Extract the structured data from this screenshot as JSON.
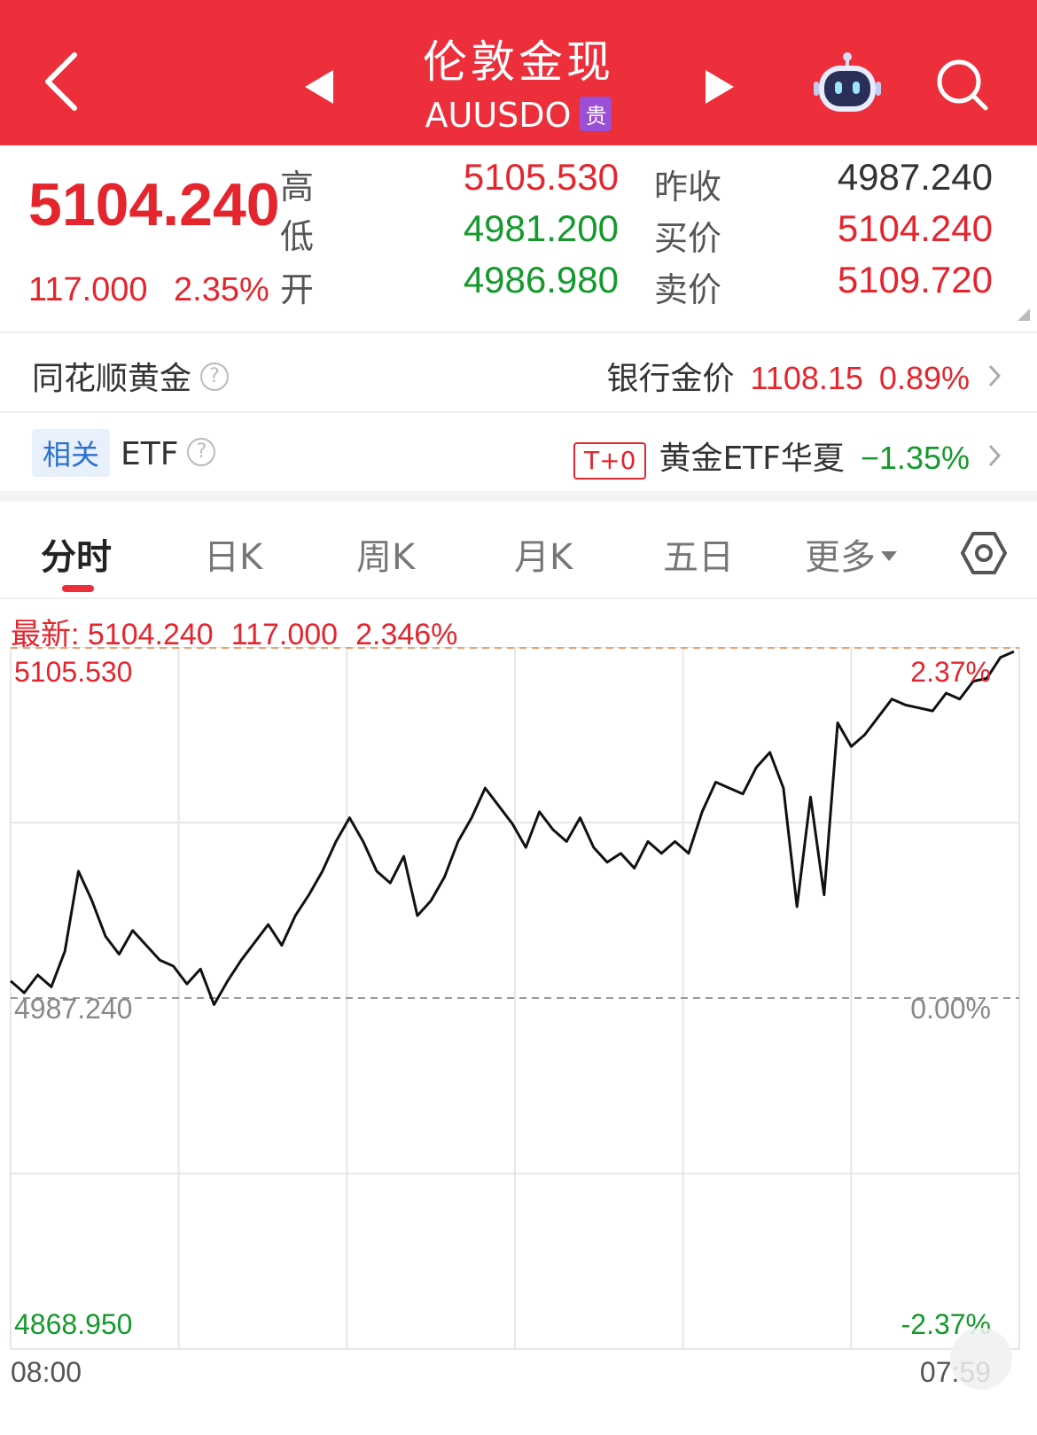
{
  "header": {
    "title": "伦敦金现",
    "code": "AUUSDO",
    "badge": "贵",
    "back_icon": "chevron-left-icon",
    "prev_icon": "triangle-left-icon",
    "next_icon": "triangle-right-icon",
    "assistant_icon": "robot-icon",
    "search_icon": "search-icon"
  },
  "quote": {
    "price": "5104.240",
    "change": "117.000",
    "change_pct": "2.35%",
    "high_label": "高",
    "high": "5105.530",
    "low_label": "低",
    "low": "4981.200",
    "open_label": "开",
    "open": "4986.980",
    "prev_close_label": "昨收",
    "prev_close": "4987.240",
    "bid_label": "买价",
    "bid": "5104.240",
    "ask_label": "卖价",
    "ask": "5109.720"
  },
  "gold_row": {
    "label": "同花顺黄金",
    "bank_label": "银行金价",
    "bank_price": "1108.15",
    "bank_pct": "0.89%"
  },
  "etf_row": {
    "tag": "相关",
    "label": "ETF",
    "t0_tag": "T+0",
    "etf_name": "黄金ETF华夏",
    "etf_pct": "−1.35%"
  },
  "tabs": [
    {
      "label": "分时",
      "active": true
    },
    {
      "label": "日K",
      "active": false
    },
    {
      "label": "周K",
      "active": false
    },
    {
      "label": "月K",
      "active": false
    },
    {
      "label": "五日",
      "active": false
    },
    {
      "label": "更多",
      "active": false
    }
  ],
  "latest": {
    "prefix": "最新: 5104.240",
    "change": "117.000",
    "pct": "2.346%"
  },
  "chart_data": {
    "type": "line",
    "ylim": [
      4868.95,
      5105.53
    ],
    "y_ticks_left": [
      "5105.530",
      "4987.240",
      "4868.950"
    ],
    "y_ticks_right": [
      "2.37%",
      "0.00%",
      "-2.37%"
    ],
    "x_ticks": [
      "08:00",
      "07:59"
    ],
    "reference_line": 4987.24,
    "colors": {
      "line": "#111111",
      "up": "#e4252e",
      "down": "#149a2c",
      "grid": "#e6e6e6"
    },
    "series": [
      {
        "values": [
          4993,
          4989,
          4995,
          4991,
          5003,
          5030,
          5020,
          5008,
          5002,
          5010,
          5005,
          5000,
          4998,
          4992,
          4997,
          4985,
          4993,
          5000,
          5006,
          5012,
          5005,
          5015,
          5022,
          5030,
          5040,
          5048,
          5040,
          5030,
          5026,
          5035,
          5015,
          5020,
          5028,
          5040,
          5048,
          5058,
          5052,
          5046,
          5038,
          5050,
          5044,
          5040,
          5048,
          5038,
          5033,
          5036,
          5031,
          5040,
          5036,
          5040,
          5036,
          5050,
          5060,
          5058,
          5056,
          5065,
          5070,
          5058,
          5018,
          5055,
          5022,
          5080,
          5072,
          5076,
          5082,
          5088,
          5086,
          5085,
          5084,
          5090,
          5088,
          5094,
          5095,
          5102,
          5104
        ]
      }
    ]
  }
}
